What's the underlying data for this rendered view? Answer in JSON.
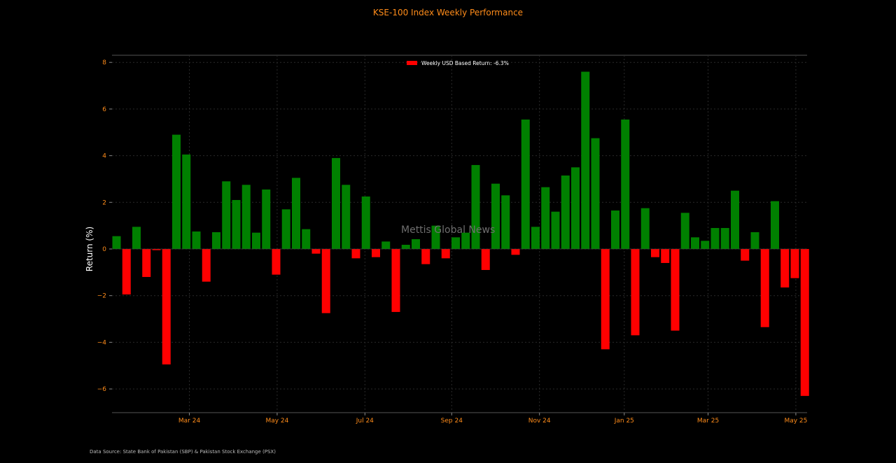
{
  "title": "KSE-100 Index Weekly Performance",
  "source_note": "Data Source: State Bank of Pakistan (SBP) & Pakistan Stock Exchange (PSX)",
  "watermark": "Mettis Global News",
  "colors": {
    "positive": "#008000",
    "negative": "#ff0000",
    "accent": "#ff8c1a",
    "background": "#000000"
  },
  "chart_data": {
    "type": "bar",
    "title": "KSE-100 Index Weekly Performance",
    "xlabel": "",
    "ylabel": "Return (%)",
    "ylim": [
      -7,
      8.3
    ],
    "grid": true,
    "legend_position": "top-center",
    "legend": "Weekly USD Based Return: -6.3%",
    "x_tick_labels": [
      "Mar 24",
      "May 24",
      "Jul 24",
      "Sep 24",
      "Nov 24",
      "Jan 25",
      "Mar 25",
      "May 25"
    ],
    "x_tick_positions": [
      7.3,
      16.1,
      24.9,
      33.6,
      42.4,
      50.9,
      59.3,
      68.1
    ],
    "y_ticks": [
      -6,
      -4,
      -2,
      0,
      2,
      4,
      6,
      8
    ],
    "values": [
      0.55,
      -1.95,
      0.95,
      -1.2,
      -0.05,
      -4.95,
      4.9,
      4.05,
      0.75,
      -1.4,
      0.72,
      2.9,
      2.1,
      2.75,
      0.7,
      2.55,
      -1.1,
      1.7,
      3.05,
      0.85,
      -0.2,
      -2.75,
      3.9,
      2.75,
      -0.4,
      2.25,
      -0.35,
      0.32,
      -2.7,
      0.18,
      0.42,
      -0.65,
      1.0,
      -0.4,
      0.5,
      0.7,
      3.6,
      -0.9,
      2.8,
      2.3,
      -0.25,
      5.55,
      0.95,
      2.65,
      1.6,
      3.15,
      3.5,
      7.6,
      4.75,
      -4.3,
      1.65,
      5.55,
      -3.7,
      1.75,
      -0.35,
      -0.6,
      -3.5,
      1.55,
      0.5,
      0.35,
      0.9,
      0.9,
      2.5,
      -0.5,
      0.72,
      -3.35,
      2.05,
      -1.65,
      -1.25,
      -6.3
    ]
  }
}
